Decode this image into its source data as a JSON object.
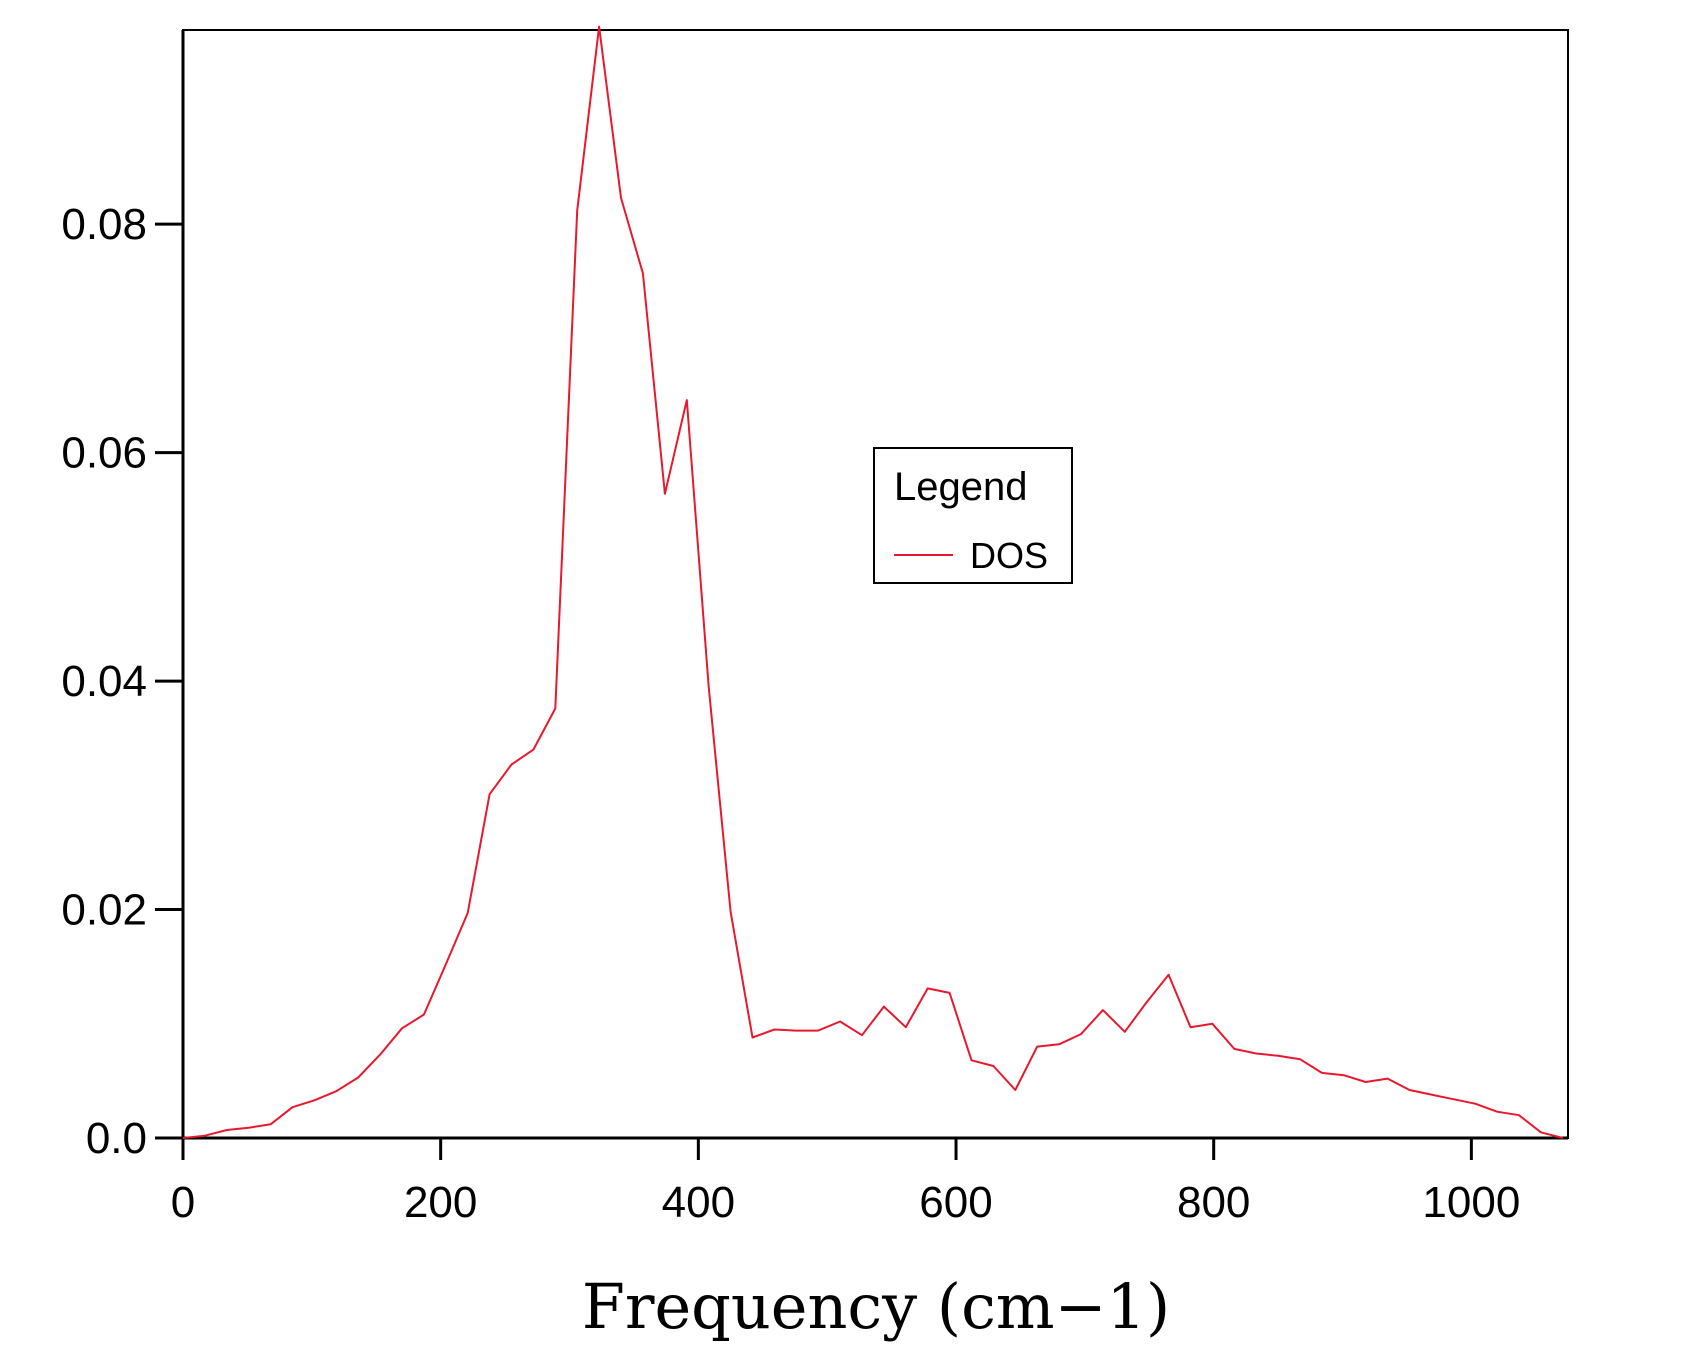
{
  "chart_data": {
    "type": "line",
    "title": "",
    "xlabel": "Frequency (cm−1)",
    "ylabel": "",
    "xlim": [
      0,
      1075
    ],
    "ylim": [
      0,
      0.097
    ],
    "x_ticks": [
      0,
      200,
      400,
      600,
      800,
      1000
    ],
    "y_ticks": [
      0.0,
      0.02,
      0.04,
      0.06,
      0.08
    ],
    "x_tick_labels": [
      "0",
      "200",
      "400",
      "600",
      "800",
      "1000"
    ],
    "y_tick_labels": [
      "0.0",
      "0.02",
      "0.04",
      "0.06",
      "0.08"
    ],
    "grid": false,
    "legend": {
      "title": "Legend",
      "placement": "center-right"
    },
    "series": [
      {
        "name": "DOS",
        "color": "#e8192c",
        "x": [
          0,
          17,
          34,
          51,
          68,
          85,
          102,
          119,
          136,
          153,
          170,
          187,
          204,
          221,
          238,
          255,
          272,
          289,
          306,
          323,
          340,
          357,
          374,
          391,
          408,
          425,
          442,
          459,
          476,
          493,
          510,
          527,
          544,
          561,
          578,
          595,
          612,
          629,
          646,
          663,
          680,
          697,
          714,
          731,
          748,
          765,
          782,
          799,
          816,
          833,
          850,
          867,
          884,
          901,
          918,
          935,
          952,
          969,
          986,
          1003,
          1020,
          1037,
          1054,
          1071
        ],
        "values": [
          0.0,
          0.0002,
          0.0007,
          0.0009,
          0.0012,
          0.0027,
          0.0033,
          0.0041,
          0.0053,
          0.0073,
          0.0096,
          0.0108,
          0.0152,
          0.0197,
          0.0301,
          0.0327,
          0.034,
          0.0376,
          0.0812,
          0.0973,
          0.0823,
          0.0757,
          0.0564,
          0.0646,
          0.0395,
          0.0198,
          0.0088,
          0.0095,
          0.0094,
          0.0094,
          0.0102,
          0.009,
          0.0115,
          0.0097,
          0.0131,
          0.0127,
          0.0068,
          0.0063,
          0.0042,
          0.008,
          0.0082,
          0.0091,
          0.0112,
          0.0093,
          0.0119,
          0.0143,
          0.0097,
          0.01,
          0.0078,
          0.0074,
          0.0072,
          0.0069,
          0.0057,
          0.0055,
          0.0049,
          0.0052,
          0.0042,
          0.0038,
          0.0034,
          0.003,
          0.0023,
          0.002,
          0.0005,
          0.0
        ]
      }
    ]
  }
}
